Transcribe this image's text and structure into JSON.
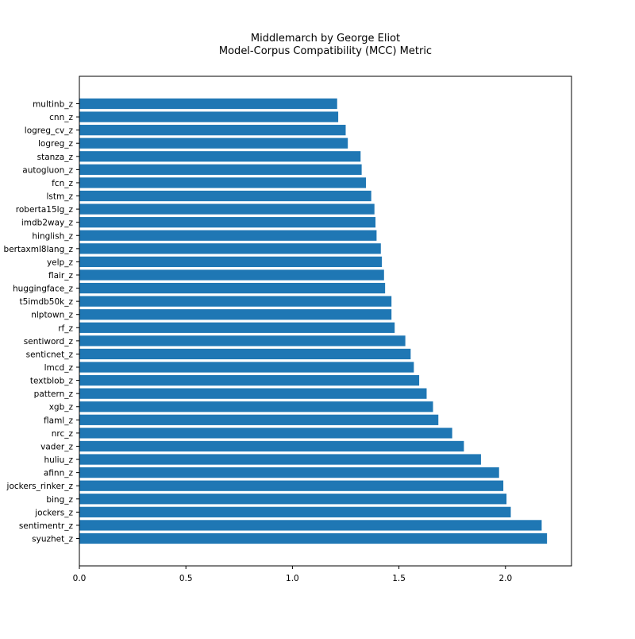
{
  "chart_data": {
    "type": "bar",
    "orientation": "horizontal",
    "title": "Middlemarch by George Eliot",
    "subtitle": "Model-Corpus Compatibility (MCC) Metric",
    "xlabel": "",
    "ylabel": "",
    "xlim": [
      0,
      2.31
    ],
    "xticks": [
      "0.0",
      "0.5",
      "1.0",
      "1.5",
      "2.0"
    ],
    "grid": false,
    "bar_color": "#1f77b4",
    "categories": [
      "multinb_z",
      "cnn_z",
      "logreg_cv_z",
      "logreg_z",
      "stanza_z",
      "autogluon_z",
      "fcn_z",
      "lstm_z",
      "roberta15lg_z",
      "imdb2way_z",
      "hinglish_z",
      "bertaxml8lang_z",
      "yelp_z",
      "flair_z",
      "huggingface_z",
      "t5imdb50k_z",
      "nlptown_z",
      "rf_z",
      "sentiword_z",
      "senticnet_z",
      "lmcd_z",
      "textblob_z",
      "pattern_z",
      "xgb_z",
      "flaml_z",
      "nrc_z",
      "vader_z",
      "huliu_z",
      "afinn_z",
      "jockers_rinker_z",
      "bing_z",
      "jockers_z",
      "sentimentr_z",
      "syuzhet_z"
    ],
    "values": [
      1.21,
      1.215,
      1.25,
      1.26,
      1.32,
      1.325,
      1.345,
      1.37,
      1.385,
      1.39,
      1.395,
      1.415,
      1.42,
      1.43,
      1.435,
      1.465,
      1.465,
      1.48,
      1.53,
      1.555,
      1.57,
      1.595,
      1.63,
      1.66,
      1.685,
      1.75,
      1.805,
      1.885,
      1.97,
      1.99,
      2.005,
      2.025,
      2.17,
      2.195
    ]
  }
}
